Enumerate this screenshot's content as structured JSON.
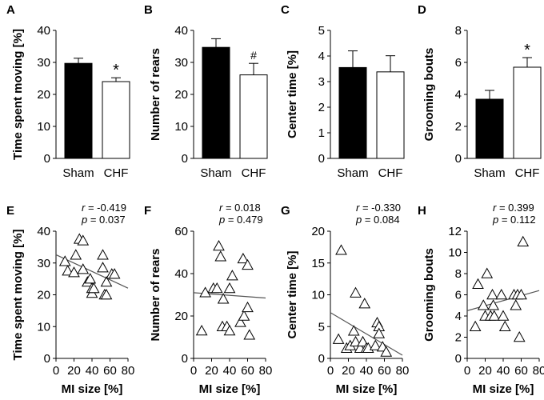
{
  "figure": {
    "panels_top": [
      "A",
      "B",
      "C",
      "D"
    ],
    "panels_bottom": [
      "E",
      "F",
      "G",
      "H"
    ]
  },
  "colors": {
    "sham": "#000000",
    "chf": "#ffffff",
    "stroke": "#000000",
    "fit": "#555555"
  },
  "chart_data": [
    {
      "id": "A",
      "type": "bar",
      "panel_label": "A",
      "categories": [
        "Sham",
        "CHF"
      ],
      "values": [
        29.7,
        24.0
      ],
      "errors": [
        1.6,
        1.2
      ],
      "fills": [
        "#000000",
        "#ffffff"
      ],
      "ylabel": "Time spent moving [%]",
      "xlabel": "",
      "ylim": [
        0,
        40
      ],
      "yticks": [
        0,
        10,
        20,
        30,
        40
      ],
      "ytick_labels": [
        "0",
        "10",
        "20",
        "30",
        "40"
      ],
      "annotations": [
        {
          "index": 1,
          "text": "*",
          "style": "star"
        }
      ]
    },
    {
      "id": "B",
      "type": "bar",
      "panel_label": "B",
      "categories": [
        "Sham",
        "CHF"
      ],
      "values": [
        34.7,
        26.1
      ],
      "errors": [
        2.7,
        3.6
      ],
      "fills": [
        "#000000",
        "#ffffff"
      ],
      "ylabel": "Number of rears",
      "xlabel": "",
      "ylim": [
        0,
        40
      ],
      "yticks": [
        0,
        10,
        20,
        30,
        40
      ],
      "ytick_labels": [
        "0",
        "10",
        "20",
        "30",
        "40"
      ],
      "annotations": [
        {
          "index": 1,
          "text": "#",
          "style": "hash"
        }
      ]
    },
    {
      "id": "C",
      "type": "bar",
      "panel_label": "C",
      "categories": [
        "Sham",
        "CHF"
      ],
      "values": [
        3.55,
        3.38
      ],
      "errors": [
        0.65,
        0.63
      ],
      "fills": [
        "#000000",
        "#ffffff"
      ],
      "ylabel": "Center time [%]",
      "xlabel": "",
      "ylim": [
        0,
        5
      ],
      "yticks": [
        0,
        1,
        2,
        3,
        4,
        5
      ],
      "ytick_labels": [
        "0",
        "1",
        "2",
        "3",
        "4",
        "5"
      ],
      "annotations": []
    },
    {
      "id": "D",
      "type": "bar",
      "panel_label": "D",
      "categories": [
        "Sham",
        "CHF"
      ],
      "values": [
        3.7,
        5.7
      ],
      "errors": [
        0.55,
        0.6
      ],
      "fills": [
        "#000000",
        "#ffffff"
      ],
      "ylabel": "Grooming bouts",
      "xlabel": "",
      "ylim": [
        0,
        8
      ],
      "yticks": [
        0,
        2,
        4,
        6,
        8
      ],
      "ytick_labels": [
        "0",
        "2",
        "4",
        "6",
        "8"
      ],
      "annotations": [
        {
          "index": 1,
          "text": "*",
          "style": "star"
        }
      ]
    },
    {
      "id": "E",
      "type": "scatter",
      "panel_label": "E",
      "r_label": "r",
      "r_value": " = -0.419",
      "p_label": "p",
      "p_value": " = 0.037",
      "x": [
        10,
        13,
        20,
        22,
        26,
        30,
        30,
        35,
        38,
        40,
        40,
        42,
        52,
        52,
        54,
        56,
        56,
        62,
        65
      ],
      "y": [
        30.5,
        27.5,
        27,
        32.5,
        37.5,
        37,
        28,
        24,
        25,
        20.5,
        22,
        22,
        32.5,
        28.5,
        20,
        20,
        24,
        26.5,
        26.5
      ],
      "fit": {
        "x": [
          0,
          80
        ],
        "y": [
          32.6,
          22.1
        ]
      },
      "ylabel": "Time spent moving [%]",
      "xlabel": "MI size [%]",
      "xlim": [
        0,
        80
      ],
      "ylim": [
        0,
        40
      ],
      "xticks": [
        0,
        20,
        40,
        60,
        80
      ],
      "xtick_labels": [
        "0",
        "20",
        "40",
        "60",
        "80"
      ],
      "yticks": [
        0,
        10,
        20,
        30,
        40
      ],
      "ytick_labels": [
        "0",
        "10",
        "20",
        "30",
        "40"
      ]
    },
    {
      "id": "F",
      "type": "scatter",
      "panel_label": "F",
      "r_label": "r",
      "r_value": " = 0.018",
      "p_label": "p",
      "p_value": " = 0.479",
      "x": [
        9,
        13,
        22,
        26,
        28,
        30,
        32,
        33,
        37,
        40,
        40,
        43,
        52,
        55,
        56,
        60,
        60,
        62
      ],
      "y": [
        13,
        31,
        33,
        33,
        53,
        48,
        15,
        28,
        15,
        33,
        13,
        39,
        17,
        47,
        20,
        44,
        24,
        11
      ],
      "fit": {
        "x": [
          0,
          80
        ],
        "y": [
          31.0,
          28.5
        ]
      },
      "ylabel": "Number of rears",
      "xlabel": "MI size [%]",
      "xlim": [
        0,
        80
      ],
      "ylim": [
        0,
        60
      ],
      "xticks": [
        0,
        20,
        40,
        60,
        80
      ],
      "xtick_labels": [
        "0",
        "20",
        "40",
        "60",
        "80"
      ],
      "yticks": [
        0,
        20,
        40,
        60
      ],
      "ytick_labels": [
        "0",
        "20",
        "40",
        "60"
      ]
    },
    {
      "id": "G",
      "type": "scatter",
      "panel_label": "G",
      "r_label": "r",
      "r_value": " = -0.330",
      "p_label": "p",
      "p_value": " = 0.084",
      "x": [
        9,
        12,
        18,
        22,
        26,
        28,
        28,
        33,
        36,
        38,
        40,
        42,
        50,
        52,
        54,
        54,
        58,
        62
      ],
      "y": [
        3.0,
        17.0,
        1.6,
        2.0,
        4.3,
        2.6,
        10.3,
        1.6,
        2.6,
        8.6,
        1.6,
        1.6,
        2.0,
        5.6,
        5.0,
        3.9,
        1.8,
        1.0
      ],
      "fit": {
        "x": [
          0,
          80
        ],
        "y": [
          7.2,
          0.5
        ]
      },
      "ylabel": "Center time [%]",
      "xlabel": "MI size [%]",
      "xlim": [
        0,
        80
      ],
      "ylim": [
        0,
        20
      ],
      "xticks": [
        0,
        20,
        40,
        60,
        80
      ],
      "xtick_labels": [
        "0",
        "20",
        "40",
        "60",
        "80"
      ],
      "yticks": [
        0,
        5,
        10,
        15,
        20
      ],
      "ytick_labels": [
        "0",
        "5",
        "10",
        "15",
        "20"
      ]
    },
    {
      "id": "H",
      "type": "scatter",
      "panel_label": "H",
      "r_label": "r",
      "r_value": " = 0.399",
      "p_label": "p",
      "p_value": " = 0.112",
      "x": [
        9,
        12,
        18,
        20,
        22,
        26,
        28,
        29,
        30,
        38,
        40,
        42,
        52,
        54,
        56,
        58,
        60,
        62
      ],
      "y": [
        3,
        7,
        5,
        4,
        8,
        4,
        6,
        5,
        4,
        6,
        4,
        3,
        6,
        5,
        6,
        2,
        6,
        11
      ],
      "fit": {
        "x": [
          0,
          80
        ],
        "y": [
          4.5,
          6.4
        ]
      },
      "ylabel": "Grooming bouts",
      "xlabel": "MI size [%]",
      "xlim": [
        0,
        80
      ],
      "ylim": [
        0,
        12
      ],
      "xticks": [
        0,
        20,
        40,
        60,
        80
      ],
      "xtick_labels": [
        "0",
        "20",
        "40",
        "60",
        "80"
      ],
      "yticks": [
        0,
        2,
        4,
        6,
        8,
        10,
        12
      ],
      "ytick_labels": [
        "0",
        "2",
        "4",
        "6",
        "8",
        "10",
        "12"
      ]
    }
  ]
}
